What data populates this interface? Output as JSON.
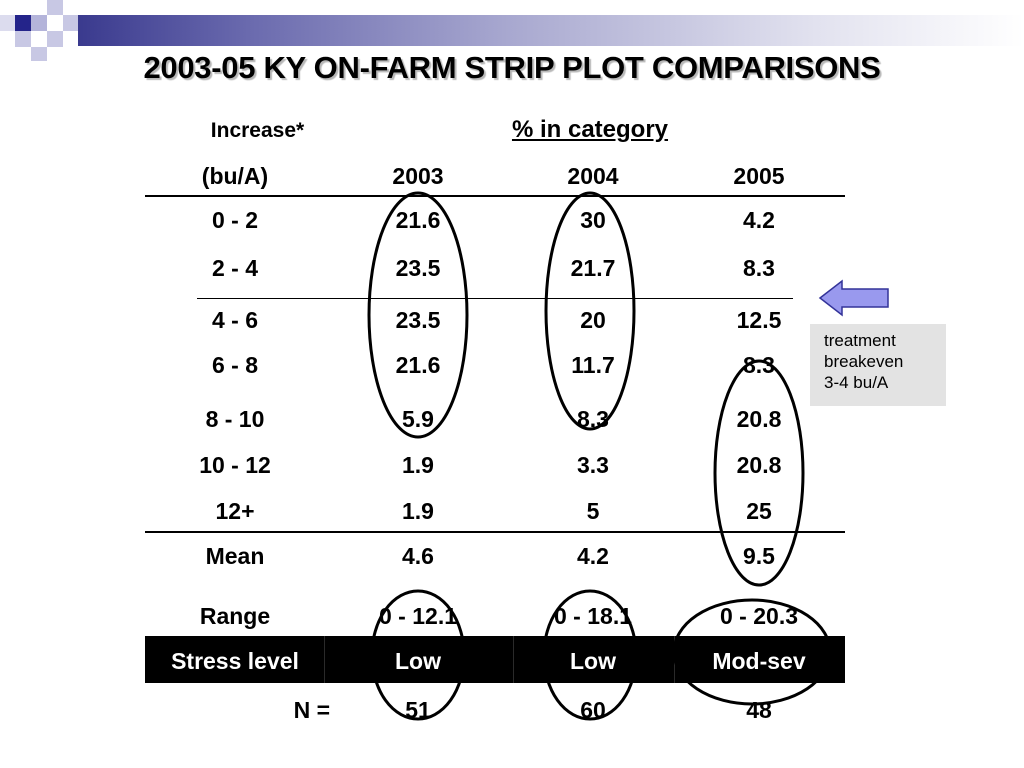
{
  "title": "2003-05 KY ON-FARM STRIP PLOT COMPARISONS",
  "header": {
    "increase_label": "Increase*",
    "pct_label": "% in category",
    "unit_label": "(bu/A)",
    "years": [
      "2003",
      "2004",
      "2005"
    ]
  },
  "rows": [
    {
      "range": "0 - 2",
      "v2003": "21.6",
      "v2004": "30",
      "v2005": "4.2"
    },
    {
      "range": "2 - 4",
      "v2003": "23.5",
      "v2004": "21.7",
      "v2005": "8.3"
    },
    {
      "range": "4 - 6",
      "v2003": "23.5",
      "v2004": "20",
      "v2005": "12.5"
    },
    {
      "range": "6 - 8",
      "v2003": "21.6",
      "v2004": "11.7",
      "v2005": "8.3"
    },
    {
      "range": "8 - 10",
      "v2003": "5.9",
      "v2004": "8.3",
      "v2005": "20.8"
    },
    {
      "range": "10 - 12",
      "v2003": "1.9",
      "v2004": "3.3",
      "v2005": "20.8"
    },
    {
      "range": "12+",
      "v2003": "1.9",
      "v2004": "5",
      "v2005": "25"
    }
  ],
  "mean": {
    "label": "Mean",
    "v2003": "4.6",
    "v2004": "4.2",
    "v2005": "9.5"
  },
  "range_row": {
    "label": "Range",
    "v2003": "0 - 12.1",
    "v2004": "0 - 18.1",
    "v2005": "0 - 20.3"
  },
  "stress": {
    "label": "Stress level",
    "v2003": "Low",
    "v2004": "Low",
    "v2005": "Mod-sev"
  },
  "n_row": {
    "label": "N =",
    "v2003": "51",
    "v2004": "60",
    "v2005": "48"
  },
  "note": {
    "line1": "treatment",
    "line2": "breakeven",
    "line3": "3-4 bu/A"
  },
  "colors": {
    "accent": "#3a3a8e",
    "arrow_fill": "#9999ee",
    "note_bg": "#e3e3e3"
  },
  "icons": {
    "arrow": "left-arrow-icon"
  }
}
